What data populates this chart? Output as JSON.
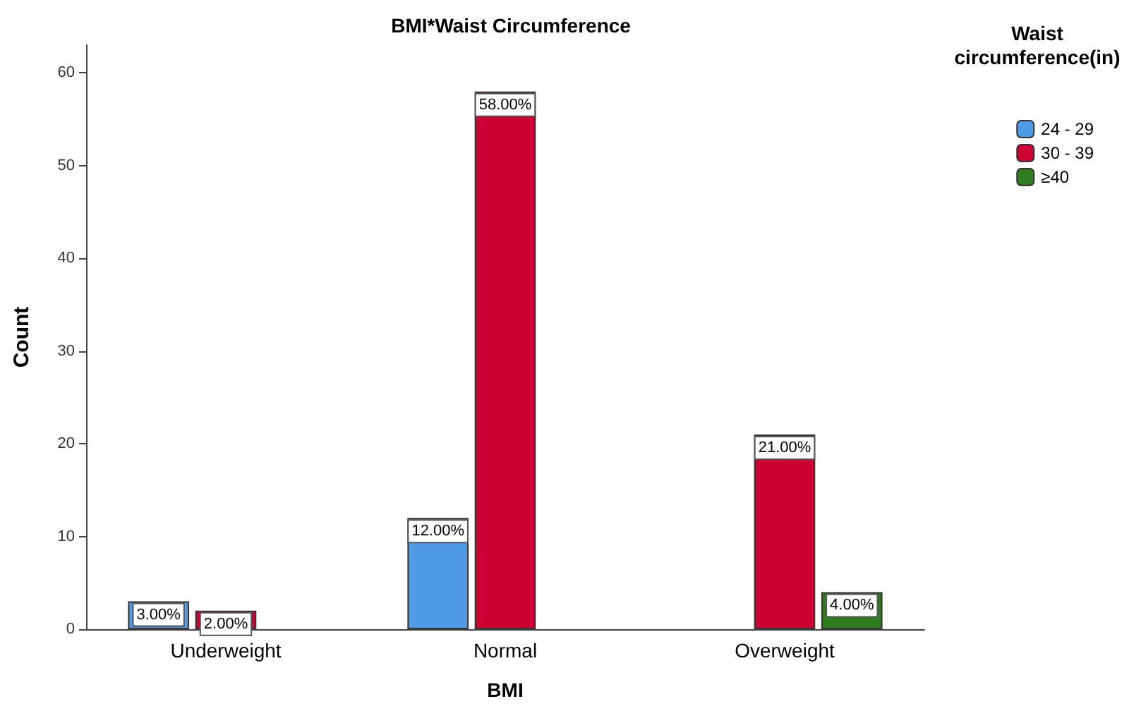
{
  "chart_data": {
    "type": "bar",
    "title": "BMI*Waist Circumference",
    "xlabel": "BMI",
    "ylabel": "Count",
    "legend_title": "Waist\ncircumference(in)",
    "categories": [
      "Underweight",
      "Normal",
      "Overweight"
    ],
    "series": [
      {
        "name": "24 - 29",
        "color": "#4f9be6",
        "values": [
          3,
          12,
          null
        ],
        "value_labels": [
          "3.00%",
          "12.00%",
          null
        ]
      },
      {
        "name": "30 - 39",
        "color": "#cc0033",
        "values": [
          2,
          58,
          21
        ],
        "value_labels": [
          "2.00%",
          "58.00%",
          "21.00%"
        ]
      },
      {
        "name": "≥40",
        "color": "#2e7d1e",
        "values": [
          null,
          null,
          4
        ],
        "value_labels": [
          null,
          null,
          "4.00%"
        ]
      }
    ],
    "ylim": [
      0,
      63
    ],
    "yticks": [
      0,
      10,
      20,
      30,
      40,
      50,
      60
    ],
    "grid": false,
    "legend": "top right"
  }
}
